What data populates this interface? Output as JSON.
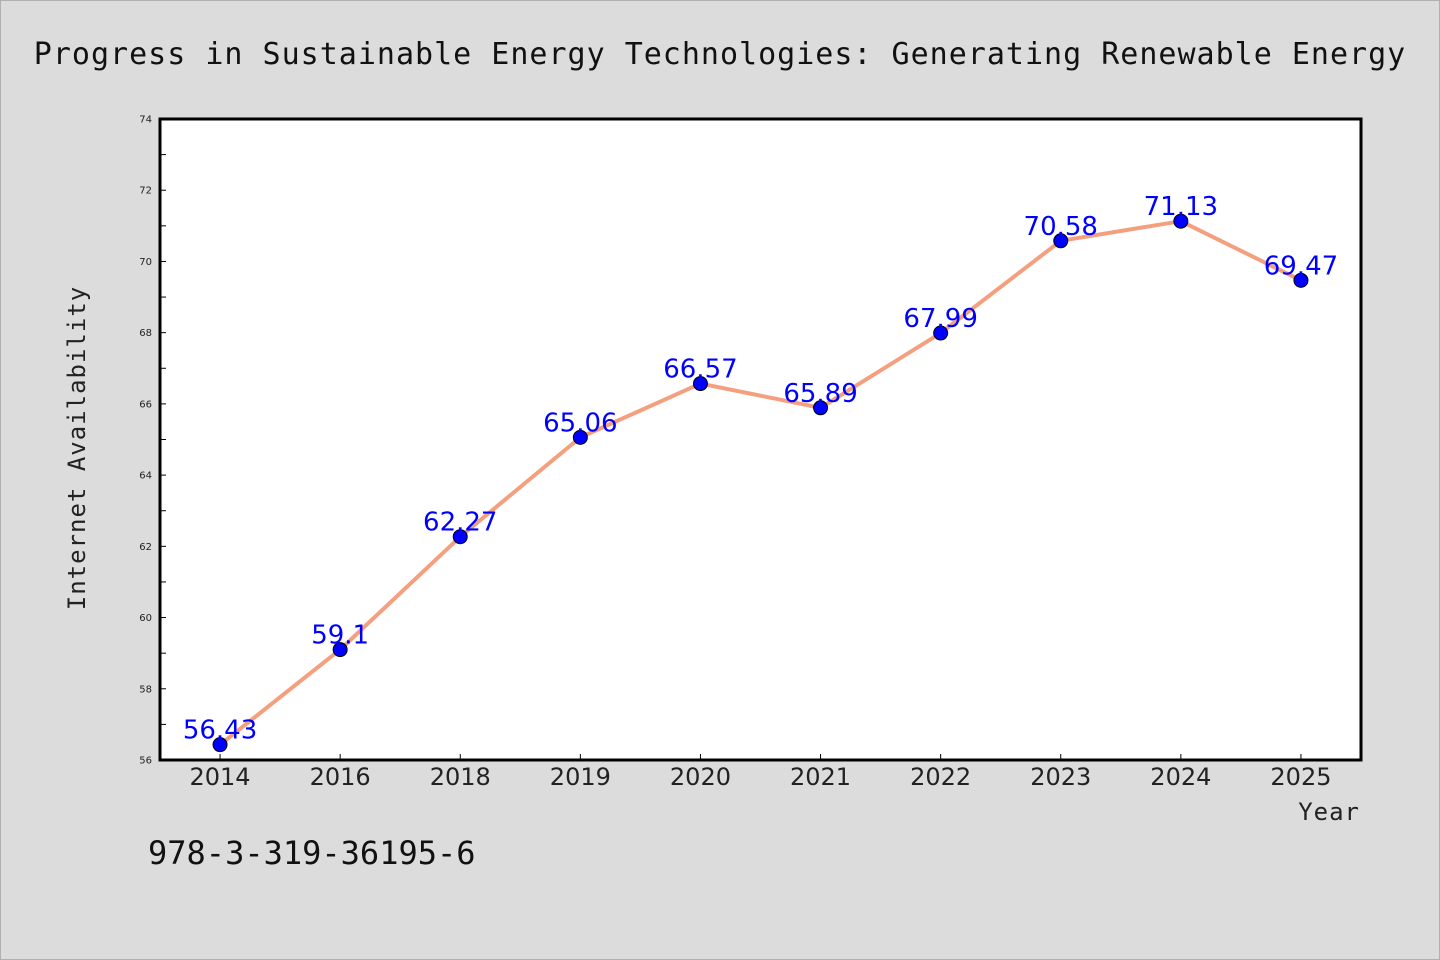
{
  "chart_data": {
    "type": "line",
    "title": "Progress in Sustainable Energy Technologies: Generating Renewable Energy",
    "xlabel": "Year",
    "ylabel": "Internet Availability",
    "categories": [
      "2014",
      "2016",
      "2018",
      "2019",
      "2020",
      "2021",
      "2022",
      "2023",
      "2024",
      "2025"
    ],
    "series": [
      {
        "values": [
          56.43,
          59.1,
          62.27,
          65.06,
          66.57,
          65.89,
          67.99,
          70.58,
          71.13,
          69.47
        ],
        "labels": [
          "56.43",
          "59.1",
          "62.27",
          "65.06",
          "66.57",
          "65.89",
          "67.99",
          "70.58",
          "71.13",
          "69.47"
        ],
        "line_color": "#f4a07f",
        "marker_color": "#0000ff"
      }
    ],
    "ylim": [
      56,
      74
    ],
    "yticks": [
      "56",
      "58",
      "60",
      "62",
      "64",
      "66",
      "68",
      "70",
      "72",
      "74"
    ],
    "grid": false,
    "legend": "none"
  },
  "footnote": "978-3-319-36195-6",
  "colors": {
    "background": "#dcdcdc",
    "plot_background": "#ffffff"
  }
}
